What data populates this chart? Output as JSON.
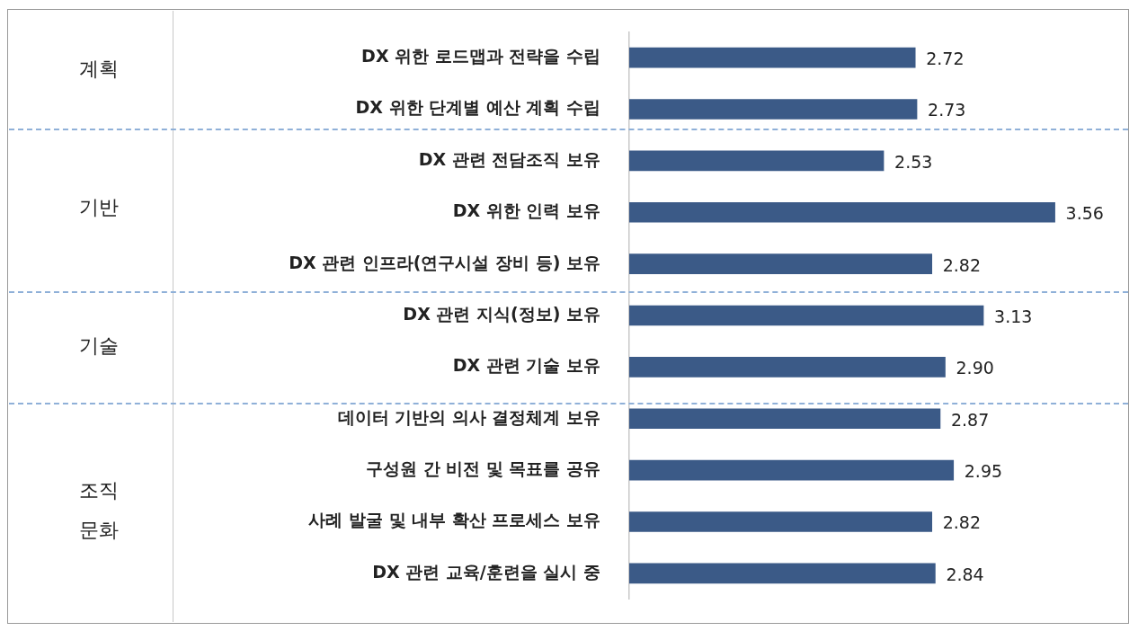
{
  "chart_data": {
    "type": "bar",
    "orientation": "horizontal",
    "categories": [
      "DX 위한 로드맵과 전략을 수립",
      "DX 위한 단계별 예산 계획 수립",
      "DX 관련 전담조직 보유",
      "DX 위한 인력 보유",
      "DX 관련 인프라(연구시설 장비 등) 보유",
      "DX 관련 지식(정보) 보유",
      "DX 관련 기술 보유",
      "데이터 기반의 의사 결정체계 보유",
      "구성원 간 비전 및 목표를 공유",
      "사례 발굴 및 내부 확산 프로세스 보유",
      "DX 관련 교육/훈련을 실시 중"
    ],
    "values": [
      2.72,
      2.73,
      2.53,
      3.56,
      2.82,
      3.13,
      2.9,
      2.87,
      2.95,
      2.82,
      2.84
    ],
    "value_labels": [
      "2.72",
      "2.73",
      "2.53",
      "3.56",
      "2.82",
      "3.13",
      "2.90",
      "2.87",
      "2.95",
      "2.82",
      "2.84"
    ],
    "color": "#3b5a87",
    "xlim": [
      1,
      4
    ],
    "legend": false,
    "annotations": [
      "계획",
      "기반",
      "기술",
      "조직 문화"
    ]
  }
}
